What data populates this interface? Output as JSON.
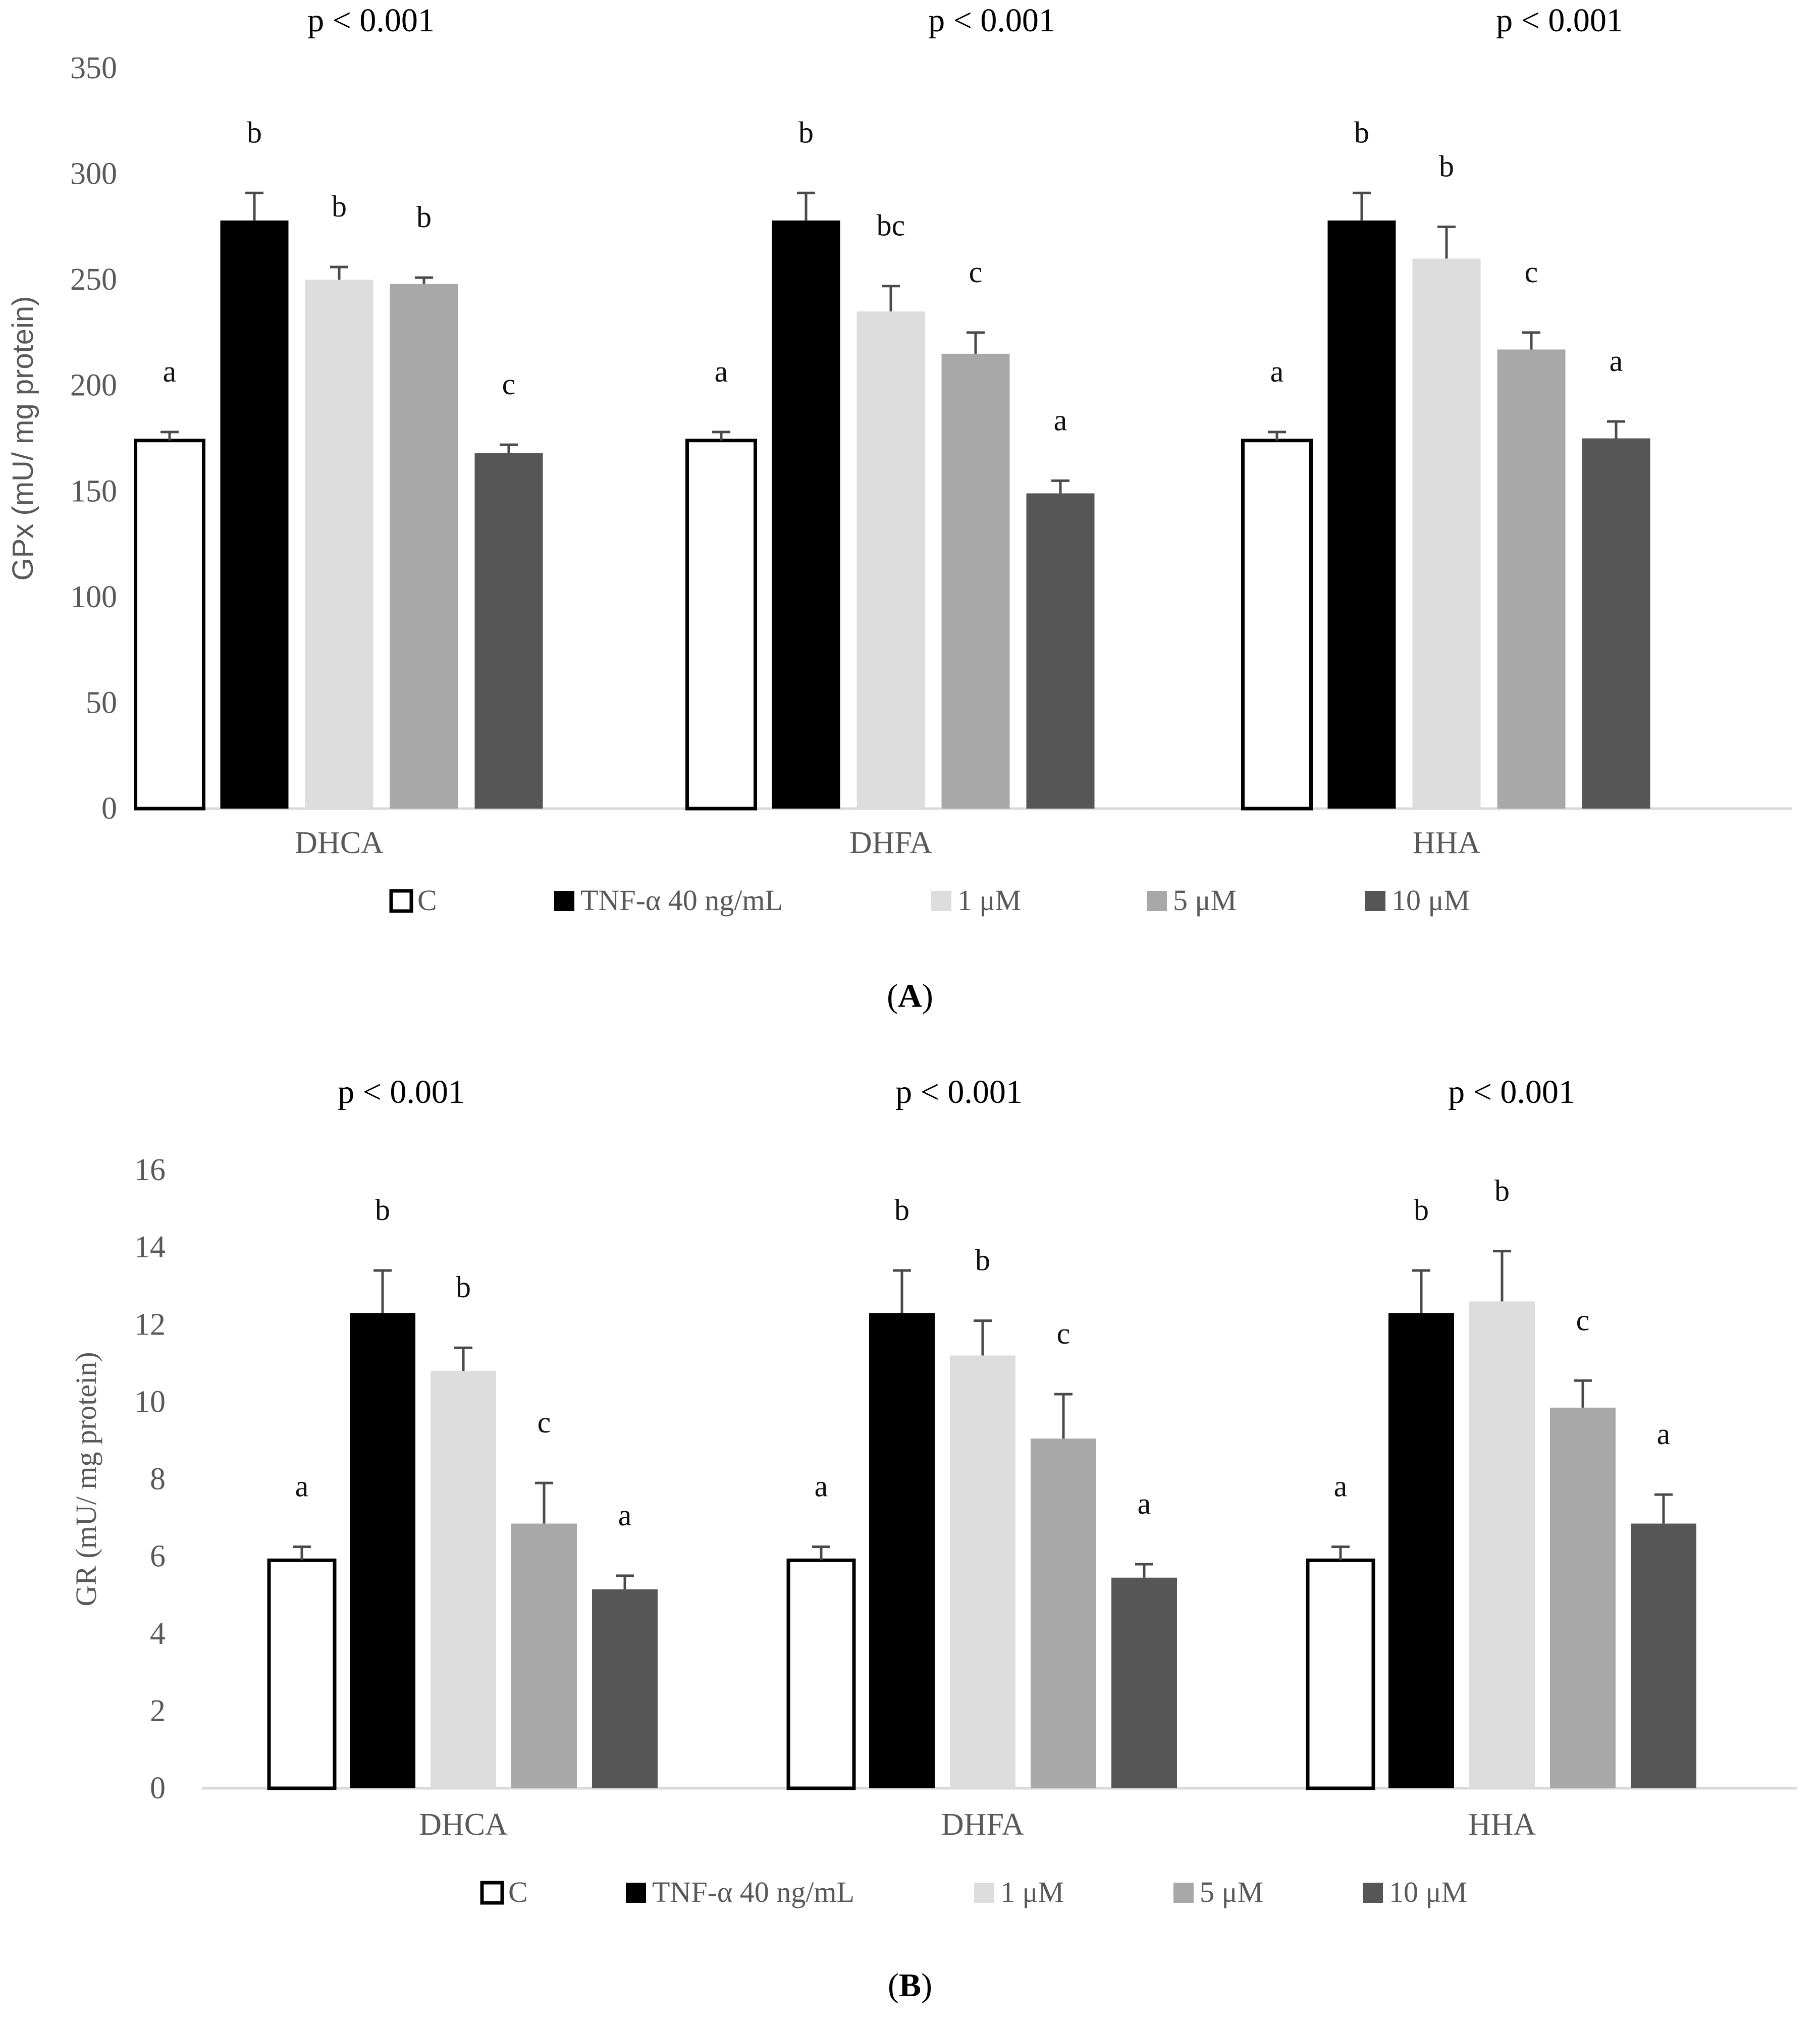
{
  "chart_data": [
    {
      "type": "bar",
      "panel_label": "A",
      "title": "",
      "ylabel": "GPx (mU/ mg protein)",
      "xlabel": "",
      "ylim": [
        0,
        350
      ],
      "yticks": [
        0,
        50,
        100,
        150,
        200,
        250,
        300,
        350
      ],
      "grid": false,
      "legend_position": "bottom",
      "categories": [
        "DHCA",
        "DHFA",
        "HHA"
      ],
      "significance": [
        "p < 0.001",
        "p < 0.001",
        "p < 0.001"
      ],
      "series": [
        {
          "name": "C",
          "color": "#ffffff",
          "values": [
            174,
            174,
            174
          ],
          "errors": [
            4,
            4,
            4
          ],
          "letters": [
            "a",
            "a",
            "a"
          ]
        },
        {
          "name": "TNF-α 40 ng/mL",
          "color": "#000000",
          "values": [
            278,
            278,
            278
          ],
          "errors": [
            13,
            13,
            13
          ],
          "letters": [
            "b",
            "b",
            "b"
          ]
        },
        {
          "name": "1 μM",
          "color": "#dddddd",
          "values": [
            250,
            235,
            260
          ],
          "errors": [
            6,
            12,
            15
          ],
          "letters": [
            "b",
            "bc",
            "b"
          ]
        },
        {
          "name": "5 μM",
          "color": "#a8a8a8",
          "values": [
            248,
            215,
            217
          ],
          "errors": [
            3,
            10,
            8
          ],
          "letters": [
            "b",
            "c",
            "c"
          ]
        },
        {
          "name": "10 μM",
          "color": "#565656",
          "values": [
            168,
            149,
            175
          ],
          "errors": [
            4,
            6,
            8
          ],
          "letters": [
            "c",
            "a",
            "a"
          ]
        }
      ]
    },
    {
      "type": "bar",
      "panel_label": "B",
      "title": "",
      "ylabel": "GR (mU/ mg protein)",
      "xlabel": "",
      "ylim": [
        0,
        16
      ],
      "yticks": [
        0,
        2,
        4,
        6,
        8,
        10,
        12,
        14,
        16
      ],
      "grid": false,
      "legend_position": "bottom",
      "categories": [
        "DHCA",
        "DHFA",
        "HHA"
      ],
      "significance": [
        "p < 0.001",
        "p < 0.001",
        "p < 0.001"
      ],
      "series": [
        {
          "name": "C",
          "color": "#ffffff",
          "values": [
            5.9,
            5.9,
            5.9
          ],
          "errors": [
            0.35,
            0.35,
            0.35
          ],
          "letters": [
            "a",
            "a",
            "a"
          ]
        },
        {
          "name": "TNF-α 40 ng/mL",
          "color": "#000000",
          "values": [
            12.3,
            12.3,
            12.3
          ],
          "errors": [
            1.1,
            1.1,
            1.1
          ],
          "letters": [
            "b",
            "b",
            "b"
          ]
        },
        {
          "name": "1 μM",
          "color": "#dddddd",
          "values": [
            10.8,
            11.2,
            12.6
          ],
          "errors": [
            0.6,
            0.9,
            1.3
          ],
          "letters": [
            "b",
            "b",
            "b"
          ]
        },
        {
          "name": "5 μM",
          "color": "#a8a8a8",
          "values": [
            6.85,
            9.05,
            9.85
          ],
          "errors": [
            1.05,
            1.15,
            0.7
          ],
          "letters": [
            "c",
            "c",
            "c"
          ]
        },
        {
          "name": "10 μM",
          "color": "#565656",
          "values": [
            5.15,
            5.45,
            6.85
          ],
          "errors": [
            0.35,
            0.35,
            0.75
          ],
          "letters": [
            "a",
            "a",
            "a"
          ]
        }
      ]
    }
  ]
}
